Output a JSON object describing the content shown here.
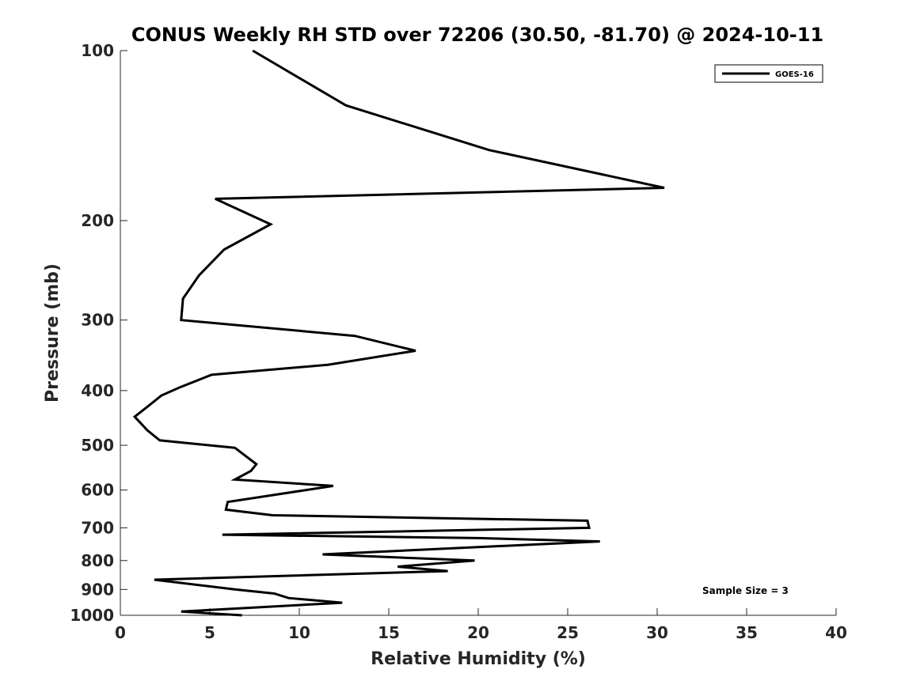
{
  "chart_data": {
    "type": "line",
    "title": "CONUS Weekly RH STD over 72206 (30.50, -81.70) @ 2024-10-11",
    "xlabel": "Relative Humidity (%)",
    "ylabel": "Pressure (mb)",
    "xlim": [
      0,
      40
    ],
    "ylim": [
      100,
      1000
    ],
    "y_scale": "log",
    "y_reversed": true,
    "grid": false,
    "legend_position": "top-right",
    "x_ticks": [
      "0",
      "5",
      "10",
      "15",
      "20",
      "25",
      "30",
      "35",
      "40"
    ],
    "y_ticks": [
      "100",
      "200",
      "300",
      "400",
      "500",
      "600",
      "700",
      "800",
      "900",
      "1000"
    ],
    "annotation": "Sample Size = 3",
    "series": [
      {
        "name": "GOES-16",
        "color": "#000000",
        "points": [
          [
            7.4,
            100
          ],
          [
            12.6,
            125
          ],
          [
            20.6,
            150
          ],
          [
            30.4,
            175
          ],
          [
            5.3,
            183
          ],
          [
            8.4,
            203
          ],
          [
            5.8,
            225
          ],
          [
            4.4,
            250
          ],
          [
            3.5,
            275
          ],
          [
            3.4,
            300
          ],
          [
            13.1,
            320
          ],
          [
            16.5,
            340
          ],
          [
            11.6,
            360
          ],
          [
            5.1,
            375
          ],
          [
            3.3,
            395
          ],
          [
            2.3,
            408
          ],
          [
            1.6,
            425
          ],
          [
            0.8,
            445
          ],
          [
            1.5,
            470
          ],
          [
            2.2,
            490
          ],
          [
            6.4,
            505
          ],
          [
            7.6,
            540
          ],
          [
            7.3,
            555
          ],
          [
            6.4,
            575
          ],
          [
            11.9,
            590
          ],
          [
            6.0,
            630
          ],
          [
            5.9,
            650
          ],
          [
            8.5,
            665
          ],
          [
            26.1,
            680
          ],
          [
            26.2,
            700
          ],
          [
            5.7,
            720
          ],
          [
            20.0,
            730
          ],
          [
            26.8,
            740
          ],
          [
            11.3,
            780
          ],
          [
            19.8,
            800
          ],
          [
            15.5,
            820
          ],
          [
            18.3,
            835
          ],
          [
            1.9,
            865
          ],
          [
            6.4,
            900
          ],
          [
            8.6,
            915
          ],
          [
            9.4,
            932
          ],
          [
            12.4,
            950
          ],
          [
            3.4,
            985
          ],
          [
            6.8,
            1000
          ]
        ]
      }
    ]
  }
}
